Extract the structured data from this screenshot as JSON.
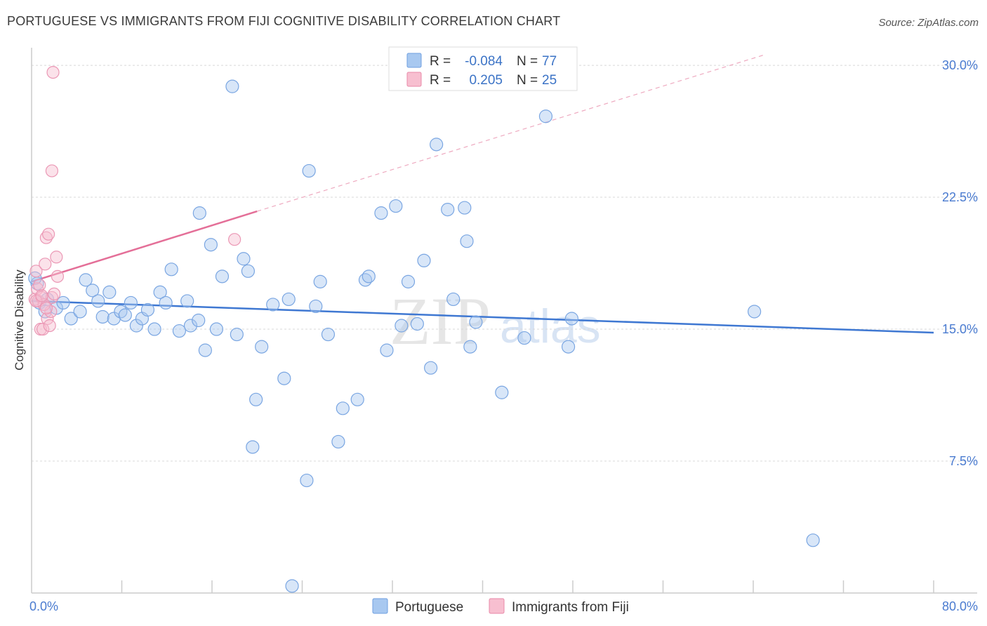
{
  "header": {
    "title": "PORTUGUESE VS IMMIGRANTS FROM FIJI COGNITIVE DISABILITY CORRELATION CHART",
    "source": "Source: ZipAtlas.com"
  },
  "legend": {
    "r_label": "R =",
    "n_label": "N =",
    "series": [
      {
        "r": "-0.084",
        "n": "77",
        "color": "#a8c8f0",
        "stroke": "#6f9fe0"
      },
      {
        "r": "0.205",
        "n": "25",
        "color": "#f7bfd0",
        "stroke": "#e88aa8"
      }
    ]
  },
  "bottom_legend": [
    "Portuguese",
    "Immigrants from Fiji"
  ],
  "watermark": {
    "zip": "ZIP",
    "atlas": "atlas"
  },
  "chart_data": {
    "type": "scatter",
    "xlabel": "",
    "ylabel": "Cognitive Disability",
    "xlim": [
      0,
      80
    ],
    "ylim": [
      0,
      31
    ],
    "x_tick_labels": [
      "0.0%",
      "80.0%"
    ],
    "y_ticks": [
      7.5,
      15.0,
      22.5,
      30.0
    ],
    "y_tick_labels": [
      "7.5%",
      "15.0%",
      "22.5%",
      "30.0%"
    ],
    "grid": "horizontal dashed",
    "colors": {
      "portuguese": "#3f78d2",
      "fiji": "#e46f98"
    },
    "series": [
      {
        "name": "Portuguese",
        "trend": {
          "x": [
            0,
            80
          ],
          "y": [
            16.6,
            14.8
          ],
          "style": "solid"
        },
        "points": [
          [
            0.5,
            17.6
          ],
          [
            0.7,
            16.5
          ],
          [
            1.2,
            16.0
          ],
          [
            1.4,
            16.7
          ],
          [
            2.2,
            16.2
          ],
          [
            2.8,
            16.5
          ],
          [
            3.5,
            15.6
          ],
          [
            4.3,
            16.0
          ],
          [
            4.8,
            17.8
          ],
          [
            5.4,
            17.2
          ],
          [
            5.9,
            16.6
          ],
          [
            6.3,
            15.7
          ],
          [
            6.9,
            17.1
          ],
          [
            7.3,
            15.6
          ],
          [
            7.9,
            16.0
          ],
          [
            8.3,
            15.8
          ],
          [
            8.8,
            16.5
          ],
          [
            9.3,
            15.2
          ],
          [
            9.8,
            15.6
          ],
          [
            10.3,
            16.1
          ],
          [
            10.9,
            15.0
          ],
          [
            11.4,
            17.1
          ],
          [
            11.9,
            16.5
          ],
          [
            12.4,
            18.4
          ],
          [
            13.1,
            14.9
          ],
          [
            13.8,
            16.6
          ],
          [
            14.1,
            15.2
          ],
          [
            14.8,
            15.5
          ],
          [
            14.9,
            21.6
          ],
          [
            15.4,
            13.8
          ],
          [
            15.9,
            19.8
          ],
          [
            16.4,
            15.0
          ],
          [
            16.9,
            18.0
          ],
          [
            17.8,
            28.8
          ],
          [
            18.2,
            14.7
          ],
          [
            18.8,
            19.0
          ],
          [
            19.2,
            18.3
          ],
          [
            19.6,
            8.3
          ],
          [
            19.9,
            11.0
          ],
          [
            20.4,
            14.0
          ],
          [
            21.4,
            16.4
          ],
          [
            22.4,
            12.2
          ],
          [
            22.8,
            16.7
          ],
          [
            23.1,
            0.4
          ],
          [
            24.4,
            6.4
          ],
          [
            24.6,
            24.0
          ],
          [
            25.2,
            16.3
          ],
          [
            25.6,
            17.7
          ],
          [
            26.3,
            14.7
          ],
          [
            27.2,
            8.6
          ],
          [
            27.6,
            10.5
          ],
          [
            28.9,
            11.0
          ],
          [
            29.6,
            17.8
          ],
          [
            29.9,
            18.0
          ],
          [
            31.0,
            21.6
          ],
          [
            31.5,
            13.8
          ],
          [
            32.3,
            22.0
          ],
          [
            32.8,
            15.2
          ],
          [
            33.4,
            17.7
          ],
          [
            34.2,
            15.3
          ],
          [
            34.8,
            18.9
          ],
          [
            35.4,
            12.8
          ],
          [
            35.9,
            25.5
          ],
          [
            36.9,
            21.8
          ],
          [
            37.4,
            16.7
          ],
          [
            38.4,
            21.9
          ],
          [
            38.6,
            20.0
          ],
          [
            38.9,
            14.0
          ],
          [
            39.4,
            15.4
          ],
          [
            41.7,
            11.4
          ],
          [
            43.7,
            14.5
          ],
          [
            45.6,
            27.1
          ],
          [
            47.6,
            14.0
          ],
          [
            47.9,
            15.6
          ],
          [
            64.1,
            16.0
          ],
          [
            69.3,
            3.0
          ],
          [
            0.3,
            17.9
          ]
        ]
      },
      {
        "name": "Immigrants from Fiji",
        "trend": {
          "x": [
            0,
            20
          ],
          "y": [
            17.7,
            21.7
          ],
          "style": "solid",
          "extended": {
            "x": [
              20,
              65
            ],
            "y": [
              21.7,
              30.6
            ],
            "style": "dashed"
          }
        },
        "points": [
          [
            0.3,
            16.7
          ],
          [
            0.4,
            18.3
          ],
          [
            0.5,
            17.3
          ],
          [
            0.6,
            16.6
          ],
          [
            0.8,
            15.0
          ],
          [
            0.9,
            16.8
          ],
          [
            1.0,
            15.0
          ],
          [
            1.2,
            18.7
          ],
          [
            1.3,
            20.2
          ],
          [
            1.4,
            15.6
          ],
          [
            1.5,
            20.4
          ],
          [
            1.6,
            15.2
          ],
          [
            1.7,
            16.0
          ],
          [
            1.8,
            16.8
          ],
          [
            1.8,
            24.0
          ],
          [
            2.0,
            17.0
          ],
          [
            2.2,
            19.1
          ],
          [
            2.3,
            18.0
          ],
          [
            1.9,
            29.6
          ],
          [
            18.0,
            20.1
          ],
          [
            0.7,
            17.5
          ],
          [
            1.1,
            16.4
          ],
          [
            0.4,
            16.6
          ],
          [
            1.3,
            16.2
          ],
          [
            0.9,
            16.9
          ]
        ]
      }
    ]
  }
}
